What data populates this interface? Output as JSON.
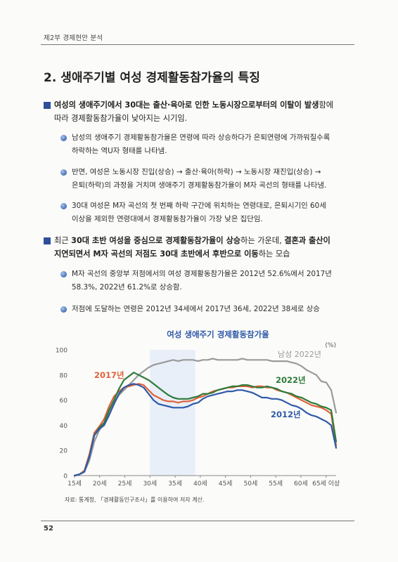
{
  "header": {
    "section": "제2부   경제현안 분석"
  },
  "title": "2. 생애주기별 여성 경제활동참가율의 특징",
  "block1": {
    "main_l1_a": "여성의 생애주기에서 30대는 출산·육아로 인한 노동시장으로부터의 이탈이 발생",
    "main_l1_b": "함에",
    "main_l2": "따라 경제활동참가율이 낮아지는 시기임.",
    "b1_l1": "남성의 생애주기 경제활동참가율은 연령에 따라 상승하다가 은퇴연령에 가까워질수록",
    "b1_l2": "하락하는 역U자 형태를 나타냄.",
    "b2_l1": "반면, 여성은 노동시장 진입(상승) → 출산·육아(하락) → 노동시장 재진입(상승) →",
    "b2_l2": "은퇴(하락)의 과정을 거치며 생애주기 경제활동참가율이 M자 곡선의 형태를 나타냄.",
    "b3_l1": "30대 여성은 M자 곡선의 첫 번째 하락 구간에 위치하는 연령대로, 은퇴시기인 60세",
    "b3_l2": "이상을 제외한 연령대에서 경제활동참가율이 가장 낮은 집단임."
  },
  "block2": {
    "l1_a": "최근 ",
    "l1_b": "30대 초반 여성을 중심으로 경제활동참가율이 상승",
    "l1_c": "하는 가운데, ",
    "l1_d": "결혼과 출산이",
    "l2_a": "지연되면서 M자 곡선의 저점도 30대 초반에서 후반으로 이동",
    "l2_b": "하는 모습",
    "b1_l1": "M자 곡선의 중앙부 저점에서의 여성 경제활동참가율은 2012년 52.6%에서 2017년",
    "b1_l2": "58.3%, 2022년 61.2%로 상승함.",
    "b2_l1": "저점에 도달하는 연령은 2012년 34세에서 2017년 36세, 2022년 38세로 상승"
  },
  "chart_data": {
    "type": "line",
    "title": "여성 생애주기 경제활동참가율",
    "unit": "(%)",
    "ylim": [
      0,
      100
    ],
    "yticks": [
      0,
      20,
      40,
      60,
      80,
      100
    ],
    "x_start": 15,
    "x_end": 65,
    "xticks": [
      "15세",
      "20세",
      "25세",
      "30세",
      "35세",
      "40세",
      "45세",
      "50세",
      "55세",
      "60세",
      "65세 이상"
    ],
    "highlight_range": [
      30,
      39
    ],
    "series": [
      {
        "name": "남성 2022년",
        "color": "#9a9a9a",
        "values": [
          0,
          1,
          3,
          12,
          27,
          36,
          42,
          50,
          58,
          64,
          68,
          72,
          76,
          80,
          83,
          86,
          88,
          89,
          90,
          91,
          92,
          91,
          92,
          92,
          92,
          91,
          92,
          92,
          93,
          92,
          92,
          92,
          92,
          92,
          93,
          92,
          92,
          92,
          92,
          92,
          91,
          91,
          91,
          91,
          90,
          89,
          87,
          84,
          82,
          80,
          75,
          74,
          68,
          50
        ]
      },
      {
        "name": "2017년",
        "color": "#e0623a",
        "values": [
          0,
          1,
          4,
          17,
          34,
          39,
          45,
          55,
          63,
          67,
          70,
          71,
          72,
          73,
          72,
          68,
          64,
          62,
          60,
          59,
          59,
          58,
          59,
          59,
          60,
          62,
          63,
          65,
          67,
          68,
          69,
          70,
          70,
          71,
          71,
          71,
          70,
          71,
          71,
          70,
          70,
          68,
          67,
          66,
          64,
          62,
          60,
          58,
          56,
          55,
          54,
          52,
          49,
          24
        ]
      },
      {
        "name": "2022년",
        "color": "#2f7a3a",
        "values": [
          0,
          1,
          3,
          15,
          32,
          38,
          42,
          52,
          60,
          69,
          76,
          79,
          82,
          80,
          78,
          76,
          73,
          70,
          67,
          64,
          62,
          61,
          61,
          61,
          62,
          63,
          65,
          65,
          66,
          68,
          69,
          70,
          71,
          71,
          72,
          72,
          71,
          70,
          70,
          71,
          70,
          69,
          67,
          66,
          65,
          63,
          62,
          60,
          58,
          57,
          55,
          54,
          52,
          27
        ]
      },
      {
        "name": "2012년",
        "color": "#2f5aa8",
        "values": [
          0,
          1,
          3,
          15,
          32,
          37,
          40,
          48,
          57,
          65,
          70,
          72,
          73,
          72,
          70,
          65,
          60,
          57,
          56,
          55,
          54,
          54,
          54,
          55,
          57,
          58,
          61,
          63,
          64,
          65,
          66,
          67,
          67,
          68,
          68,
          67,
          66,
          64,
          62,
          62,
          61,
          61,
          60,
          58,
          56,
          55,
          53,
          50,
          48,
          47,
          45,
          43,
          40,
          22
        ]
      }
    ]
  },
  "source": "자료: 통계청, 「경제활동인구조사」를 이용하여 저자 계산.",
  "page_number": "52"
}
